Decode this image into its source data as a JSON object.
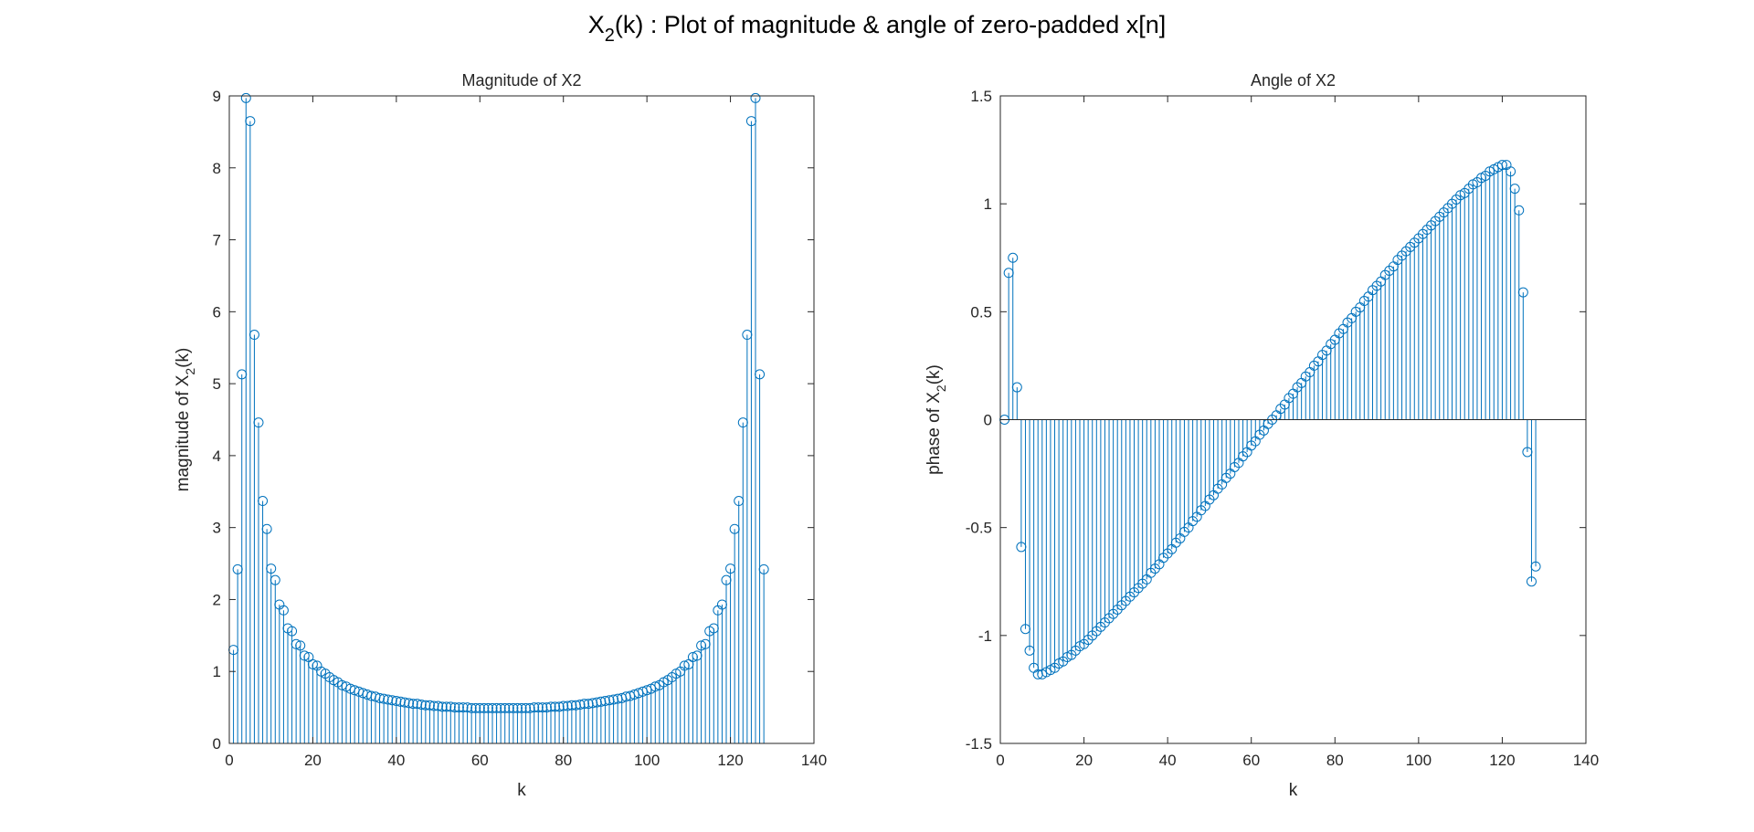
{
  "title": {
    "main": "X",
    "sub": "2",
    "rest": "(k) : Plot of magnitude & angle of zero-padded x[n]"
  },
  "chart_data": [
    {
      "type": "stem",
      "title": "Magnitude of X2",
      "xlabel": "k",
      "ylabel": {
        "main": "magnitude of X",
        "sub": "2",
        "rest": "(k)"
      },
      "color": "#0072bd",
      "baseline": 0,
      "xlim": [
        0,
        140
      ],
      "xticks": [
        0,
        20,
        40,
        60,
        80,
        100,
        120,
        140
      ],
      "ylim": [
        0,
        9
      ],
      "yticks": [
        0,
        1,
        2,
        3,
        4,
        5,
        6,
        7,
        8,
        9
      ],
      "x": [
        1,
        2,
        3,
        4,
        5,
        6,
        7,
        8,
        9,
        10,
        11,
        12,
        13,
        14,
        15,
        16,
        17,
        18,
        19,
        20,
        21,
        22,
        23,
        24,
        25,
        26,
        27,
        28,
        29,
        30,
        31,
        32,
        33,
        34,
        35,
        36,
        37,
        38,
        39,
        40,
        41,
        42,
        43,
        44,
        45,
        46,
        47,
        48,
        49,
        50,
        51,
        52,
        53,
        54,
        55,
        56,
        57,
        58,
        59,
        60,
        61,
        62,
        63,
        64,
        65,
        66,
        67,
        68,
        69,
        70,
        71,
        72,
        73,
        74,
        75,
        76,
        77,
        78,
        79,
        80,
        81,
        82,
        83,
        84,
        85,
        86,
        87,
        88,
        89,
        90,
        91,
        92,
        93,
        94,
        95,
        96,
        97,
        98,
        99,
        100,
        101,
        102,
        103,
        104,
        105,
        106,
        107,
        108,
        109,
        110,
        111,
        112,
        113,
        114,
        115,
        116,
        117,
        118,
        119,
        120,
        121,
        122,
        123,
        124,
        125,
        126,
        127,
        128
      ],
      "values": [
        1.3,
        2.42,
        5.13,
        8.97,
        8.65,
        5.68,
        4.46,
        3.37,
        2.98,
        2.43,
        2.27,
        1.93,
        1.85,
        1.6,
        1.56,
        1.38,
        1.36,
        1.22,
        1.2,
        1.1,
        1.08,
        1.0,
        0.97,
        0.92,
        0.88,
        0.85,
        0.81,
        0.79,
        0.76,
        0.74,
        0.72,
        0.7,
        0.68,
        0.66,
        0.65,
        0.63,
        0.62,
        0.61,
        0.6,
        0.59,
        0.58,
        0.57,
        0.56,
        0.55,
        0.55,
        0.54,
        0.53,
        0.53,
        0.52,
        0.52,
        0.51,
        0.51,
        0.51,
        0.5,
        0.5,
        0.5,
        0.5,
        0.49,
        0.49,
        0.49,
        0.49,
        0.49,
        0.49,
        0.49,
        0.49,
        0.49,
        0.49,
        0.49,
        0.49,
        0.49,
        0.49,
        0.49,
        0.5,
        0.5,
        0.5,
        0.5,
        0.51,
        0.51,
        0.51,
        0.52,
        0.52,
        0.53,
        0.53,
        0.54,
        0.55,
        0.55,
        0.56,
        0.57,
        0.58,
        0.59,
        0.6,
        0.61,
        0.62,
        0.63,
        0.65,
        0.66,
        0.68,
        0.7,
        0.72,
        0.74,
        0.76,
        0.79,
        0.81,
        0.85,
        0.88,
        0.92,
        0.97,
        1.0,
        1.08,
        1.1,
        1.2,
        1.22,
        1.36,
        1.38,
        1.56,
        1.6,
        1.85,
        1.93,
        2.27,
        2.43,
        2.98,
        3.37,
        4.46,
        5.68,
        8.65,
        8.97,
        5.13,
        2.42
      ]
    },
    {
      "type": "stem",
      "title": "Angle of X2",
      "xlabel": "k",
      "ylabel": {
        "main": "phase of X",
        "sub": "2",
        "rest": "(k)"
      },
      "color": "#0072bd",
      "baseline": 0,
      "xlim": [
        0,
        140
      ],
      "xticks": [
        0,
        20,
        40,
        60,
        80,
        100,
        120,
        140
      ],
      "ylim": [
        -1.5,
        1.5
      ],
      "yticks": [
        -1.5,
        -1,
        -0.5,
        0,
        0.5,
        1,
        1.5
      ],
      "x": [
        1,
        2,
        3,
        4,
        5,
        6,
        7,
        8,
        9,
        10,
        11,
        12,
        13,
        14,
        15,
        16,
        17,
        18,
        19,
        20,
        21,
        22,
        23,
        24,
        25,
        26,
        27,
        28,
        29,
        30,
        31,
        32,
        33,
        34,
        35,
        36,
        37,
        38,
        39,
        40,
        41,
        42,
        43,
        44,
        45,
        46,
        47,
        48,
        49,
        50,
        51,
        52,
        53,
        54,
        55,
        56,
        57,
        58,
        59,
        60,
        61,
        62,
        63,
        64,
        65,
        66,
        67,
        68,
        69,
        70,
        71,
        72,
        73,
        74,
        75,
        76,
        77,
        78,
        79,
        80,
        81,
        82,
        83,
        84,
        85,
        86,
        87,
        88,
        89,
        90,
        91,
        92,
        93,
        94,
        95,
        96,
        97,
        98,
        99,
        100,
        101,
        102,
        103,
        104,
        105,
        106,
        107,
        108,
        109,
        110,
        111,
        112,
        113,
        114,
        115,
        116,
        117,
        118,
        119,
        120,
        121,
        122,
        123,
        124,
        125,
        126,
        127,
        128
      ],
      "values": [
        0,
        0.68,
        0.75,
        0.15,
        -0.59,
        -0.97,
        -1.07,
        -1.15,
        -1.18,
        -1.18,
        -1.17,
        -1.16,
        -1.15,
        -1.13,
        -1.12,
        -1.1,
        -1.09,
        -1.07,
        -1.05,
        -1.04,
        -1.02,
        -1.0,
        -0.98,
        -0.96,
        -0.94,
        -0.92,
        -0.9,
        -0.88,
        -0.86,
        -0.84,
        -0.82,
        -0.8,
        -0.78,
        -0.76,
        -0.74,
        -0.71,
        -0.69,
        -0.67,
        -0.64,
        -0.62,
        -0.6,
        -0.57,
        -0.55,
        -0.52,
        -0.5,
        -0.47,
        -0.45,
        -0.42,
        -0.4,
        -0.37,
        -0.35,
        -0.32,
        -0.3,
        -0.27,
        -0.25,
        -0.22,
        -0.2,
        -0.17,
        -0.15,
        -0.12,
        -0.1,
        -0.07,
        -0.05,
        -0.02,
        0,
        0.02,
        0.05,
        0.07,
        0.1,
        0.12,
        0.15,
        0.17,
        0.2,
        0.22,
        0.25,
        0.27,
        0.3,
        0.32,
        0.35,
        0.37,
        0.4,
        0.42,
        0.45,
        0.47,
        0.5,
        0.52,
        0.55,
        0.57,
        0.6,
        0.62,
        0.64,
        0.67,
        0.69,
        0.71,
        0.74,
        0.76,
        0.78,
        0.8,
        0.82,
        0.84,
        0.86,
        0.88,
        0.9,
        0.92,
        0.94,
        0.96,
        0.98,
        1.0,
        1.02,
        1.04,
        1.05,
        1.07,
        1.09,
        1.1,
        1.12,
        1.13,
        1.15,
        1.16,
        1.17,
        1.18,
        1.18,
        1.15,
        1.07,
        0.97,
        0.59,
        -0.15,
        -0.75,
        -0.68
      ]
    }
  ]
}
